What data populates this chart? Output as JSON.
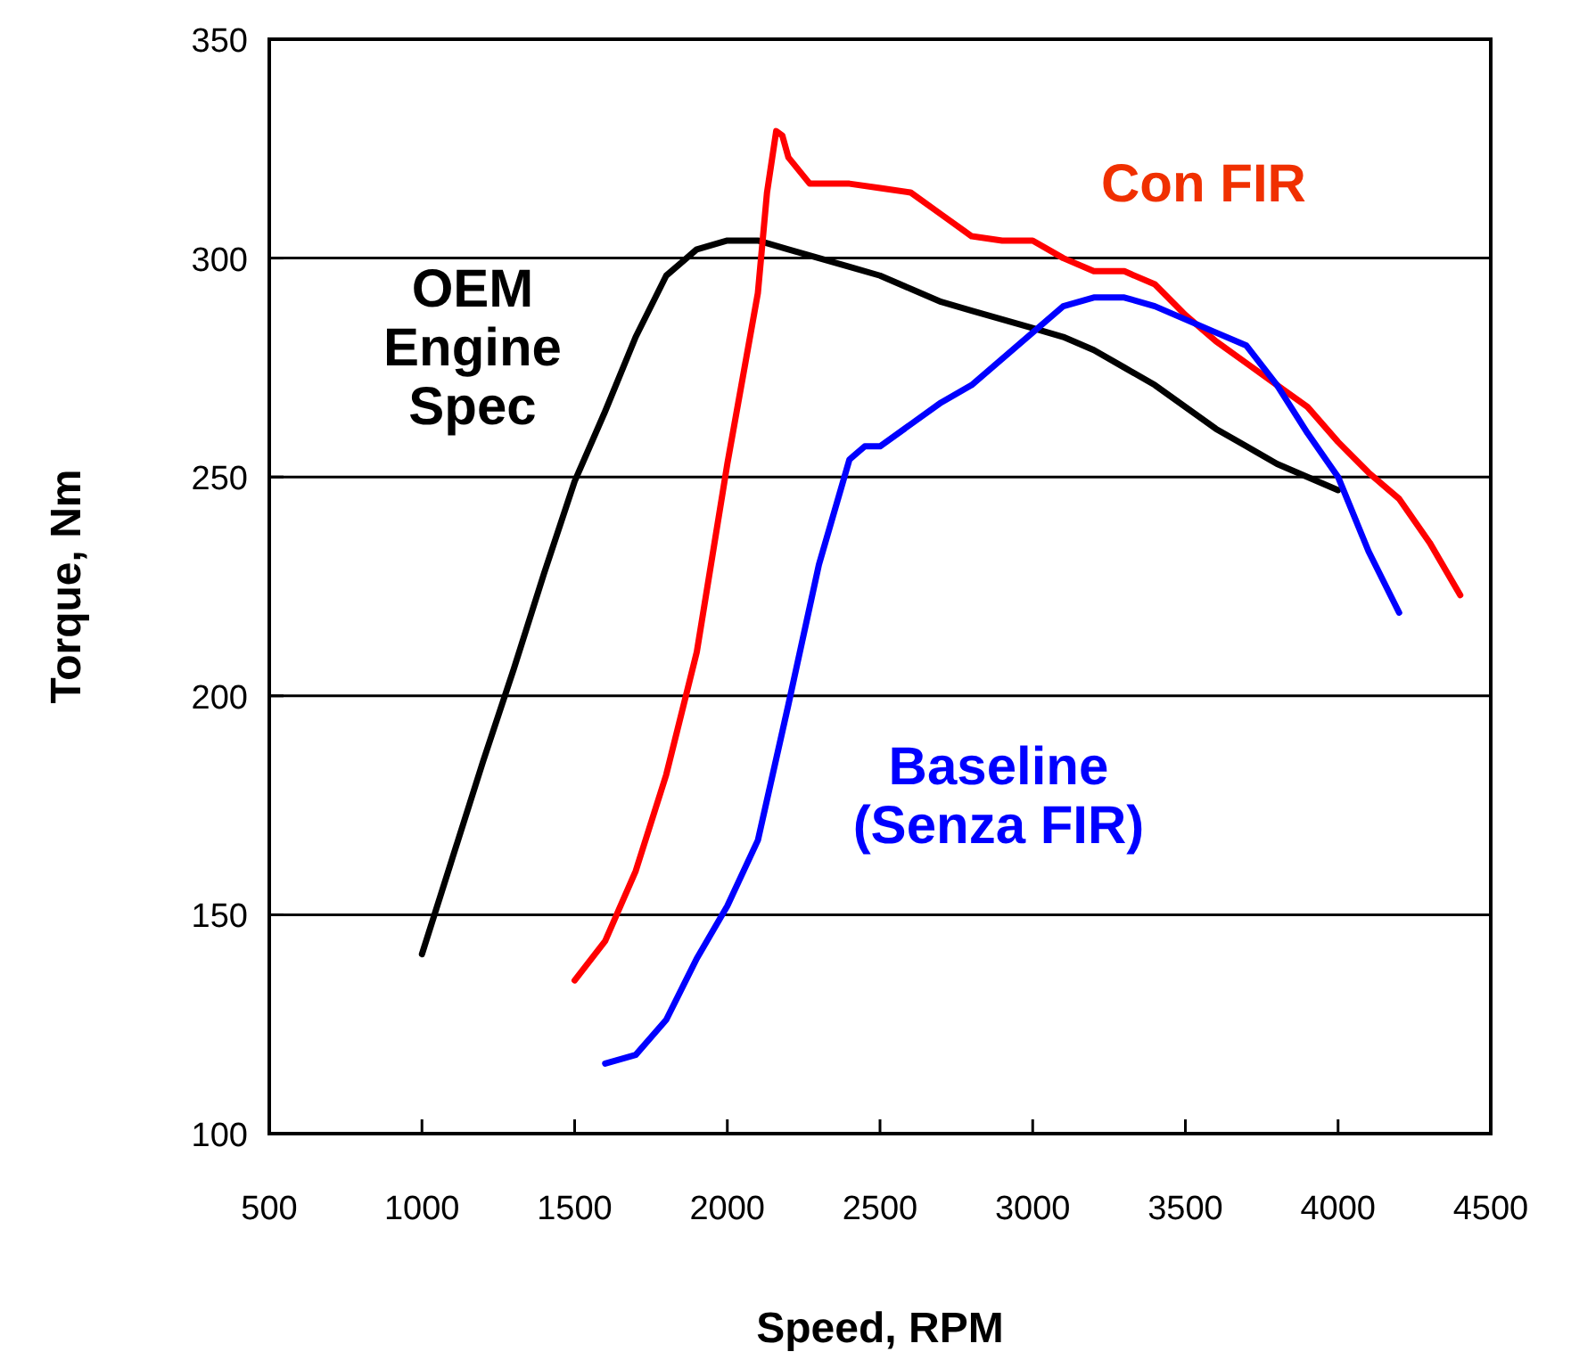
{
  "chart_data": {
    "type": "line",
    "xlabel": "Speed, RPM",
    "ylabel": "Torque, Nm",
    "xlim": [
      500,
      4500
    ],
    "xticks": [
      500,
      1000,
      1500,
      2000,
      2500,
      3000,
      3500,
      4000,
      4500
    ],
    "ylim": [
      100,
      350
    ],
    "yticks": [
      100,
      150,
      200,
      250,
      300,
      350
    ],
    "grid": "y",
    "marker": "none",
    "line_style": "solid",
    "series": [
      {
        "name": "OEM\nEngine\nSpec",
        "color": "#000000",
        "x": [
          1000,
          1100,
          1200,
          1300,
          1400,
          1500,
          1600,
          1700,
          1800,
          1900,
          2000,
          2100,
          2200,
          2300,
          2400,
          2500,
          2600,
          2700,
          2800,
          2900,
          3000,
          3100,
          3200,
          3300,
          3400,
          3500,
          3600,
          3700,
          3800,
          3900,
          4000
        ],
        "values": [
          141,
          163,
          185,
          206,
          228,
          249,
          265,
          282,
          296,
          302,
          304,
          304,
          302,
          300,
          298,
          296,
          293,
          290,
          288,
          286,
          284,
          282,
          279,
          275,
          271,
          266,
          261,
          257,
          253,
          250,
          247
        ]
      },
      {
        "name": "Con FIR",
        "color": "#ff0000",
        "x": [
          1500,
          1600,
          1700,
          1800,
          1900,
          2000,
          2100,
          2130,
          2160,
          2180,
          2200,
          2270,
          2400,
          2500,
          2600,
          2700,
          2800,
          2900,
          3000,
          3100,
          3200,
          3300,
          3400,
          3500,
          3600,
          3700,
          3800,
          3900,
          4000,
          4100,
          4200,
          4300,
          4400
        ],
        "values": [
          135,
          144,
          160,
          182,
          210,
          253,
          292,
          315,
          329,
          328,
          323,
          317,
          317,
          316,
          315,
          310,
          305,
          304,
          304,
          300,
          297,
          297,
          294,
          287,
          281,
          276,
          271,
          266,
          258,
          251,
          245,
          235,
          223
        ]
      },
      {
        "name": "Baseline\n(Senza FIR)",
        "color": "#0000ff",
        "x": [
          1600,
          1700,
          1800,
          1900,
          2000,
          2100,
          2200,
          2300,
          2400,
          2450,
          2500,
          2600,
          2700,
          2800,
          2900,
          3000,
          3100,
          3200,
          3300,
          3400,
          3500,
          3600,
          3700,
          3800,
          3900,
          4000,
          4100,
          4200
        ],
        "values": [
          116,
          118,
          126,
          140,
          152,
          167,
          198,
          230,
          254,
          257,
          257,
          262,
          267,
          271,
          277,
          283,
          289,
          291,
          291,
          289,
          286,
          283,
          280,
          271,
          260,
          250,
          233,
          219
        ]
      }
    ]
  }
}
